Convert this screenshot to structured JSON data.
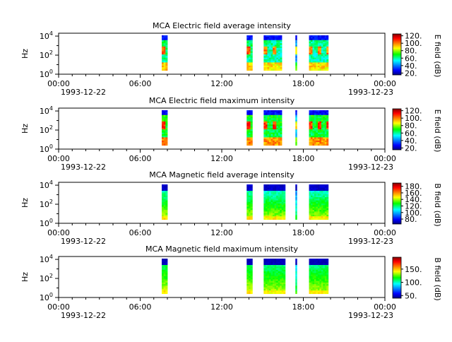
{
  "chart_data": [
    {
      "type": "heatmap",
      "title": "MCA  Electric field average intensity",
      "ylabel": "Hz",
      "colorbar_label": "E field (dB)",
      "colorbar_ticks": [
        "20.",
        "40.",
        "60.",
        "80.",
        "100.",
        "120."
      ],
      "colorbar_range": [
        15,
        125
      ],
      "ylim": [
        1,
        20000
      ],
      "y_scale": "log",
      "y_ticks": [
        {
          "base": "10",
          "exp": "0"
        },
        {
          "base": "10",
          "exp": "2"
        },
        {
          "base": "10",
          "exp": "4"
        }
      ],
      "x_ticks": [
        "00:00",
        "06:00",
        "12:00",
        "18:00",
        "00:00"
      ],
      "x_dates": [
        "1993-12-22",
        "1993-12-23"
      ],
      "x_range_hours": [
        0,
        24
      ],
      "x_minor_step_hours": 1,
      "quantity": "E",
      "stat": "avg",
      "intervals": [
        {
          "start": "07:35",
          "end": "08:00",
          "level": 65
        },
        {
          "start": "13:50",
          "end": "14:15",
          "level": 65
        },
        {
          "start": "15:05",
          "end": "16:25",
          "level": 62
        },
        {
          "start": "17:25",
          "end": "17:30",
          "level": 45
        },
        {
          "start": "18:25",
          "end": "19:50",
          "level": 62
        }
      ]
    },
    {
      "type": "heatmap",
      "title": "MCA  Electric field maximum intensity",
      "ylabel": "Hz",
      "colorbar_label": "E field (dB)",
      "colorbar_ticks": [
        "20.",
        "40.",
        "60.",
        "80.",
        "100.",
        "120."
      ],
      "colorbar_range": [
        15,
        125
      ],
      "ylim": [
        1,
        20000
      ],
      "y_scale": "log",
      "y_ticks": [
        {
          "base": "10",
          "exp": "0"
        },
        {
          "base": "10",
          "exp": "2"
        },
        {
          "base": "10",
          "exp": "4"
        }
      ],
      "x_ticks": [
        "00:00",
        "06:00",
        "12:00",
        "18:00",
        "00:00"
      ],
      "x_dates": [
        "1993-12-22",
        "1993-12-23"
      ],
      "x_range_hours": [
        0,
        24
      ],
      "x_minor_step_hours": 1,
      "quantity": "E",
      "stat": "max",
      "intervals": [
        {
          "start": "07:35",
          "end": "08:00",
          "level": 72
        },
        {
          "start": "13:50",
          "end": "14:15",
          "level": 72
        },
        {
          "start": "15:05",
          "end": "16:25",
          "level": 70
        },
        {
          "start": "17:25",
          "end": "17:30",
          "level": 50
        },
        {
          "start": "18:25",
          "end": "19:50",
          "level": 70
        }
      ]
    },
    {
      "type": "heatmap",
      "title": "MCA  Magnetic field average intensity",
      "ylabel": "Hz",
      "colorbar_label": "B field (dB)",
      "colorbar_ticks": [
        "80.",
        "100.",
        "120.",
        "140.",
        "160.",
        "180."
      ],
      "colorbar_range": [
        65,
        190
      ],
      "ylim": [
        1,
        20000
      ],
      "y_scale": "log",
      "y_ticks": [
        {
          "base": "10",
          "exp": "0"
        },
        {
          "base": "10",
          "exp": "2"
        },
        {
          "base": "10",
          "exp": "4"
        }
      ],
      "x_ticks": [
        "00:00",
        "06:00",
        "12:00",
        "18:00",
        "00:00"
      ],
      "x_dates": [
        "1993-12-22",
        "1993-12-23"
      ],
      "x_range_hours": [
        0,
        24
      ],
      "x_minor_step_hours": 1,
      "quantity": "B",
      "stat": "avg",
      "intervals": [
        {
          "start": "07:35",
          "end": "08:00",
          "level": 120
        },
        {
          "start": "13:50",
          "end": "14:15",
          "level": 120
        },
        {
          "start": "15:05",
          "end": "16:40",
          "level": 118
        },
        {
          "start": "17:25",
          "end": "17:30",
          "level": 100
        },
        {
          "start": "18:25",
          "end": "19:50",
          "level": 118
        }
      ]
    },
    {
      "type": "heatmap",
      "title": "MCA  Magnetic field maximum intensity",
      "ylabel": "Hz",
      "colorbar_label": "B field (dB)",
      "colorbar_ticks": [
        "50.",
        "100.",
        "150."
      ],
      "colorbar_range": [
        40,
        195
      ],
      "ylim": [
        1,
        20000
      ],
      "y_scale": "log",
      "y_ticks": [
        {
          "base": "10",
          "exp": "0"
        },
        {
          "base": "10",
          "exp": "2"
        },
        {
          "base": "10",
          "exp": "4"
        }
      ],
      "x_ticks": [
        "00:00",
        "06:00",
        "12:00",
        "18:00",
        "00:00"
      ],
      "x_dates": [
        "1993-12-22",
        "1993-12-23"
      ],
      "x_range_hours": [
        0,
        24
      ],
      "x_minor_step_hours": 1,
      "quantity": "B",
      "stat": "max",
      "intervals": [
        {
          "start": "07:35",
          "end": "08:00",
          "level": 115
        },
        {
          "start": "13:50",
          "end": "14:15",
          "level": 115
        },
        {
          "start": "15:05",
          "end": "16:40",
          "level": 112
        },
        {
          "start": "17:25",
          "end": "17:30",
          "level": 95
        },
        {
          "start": "18:25",
          "end": "19:50",
          "level": 112
        }
      ]
    }
  ]
}
